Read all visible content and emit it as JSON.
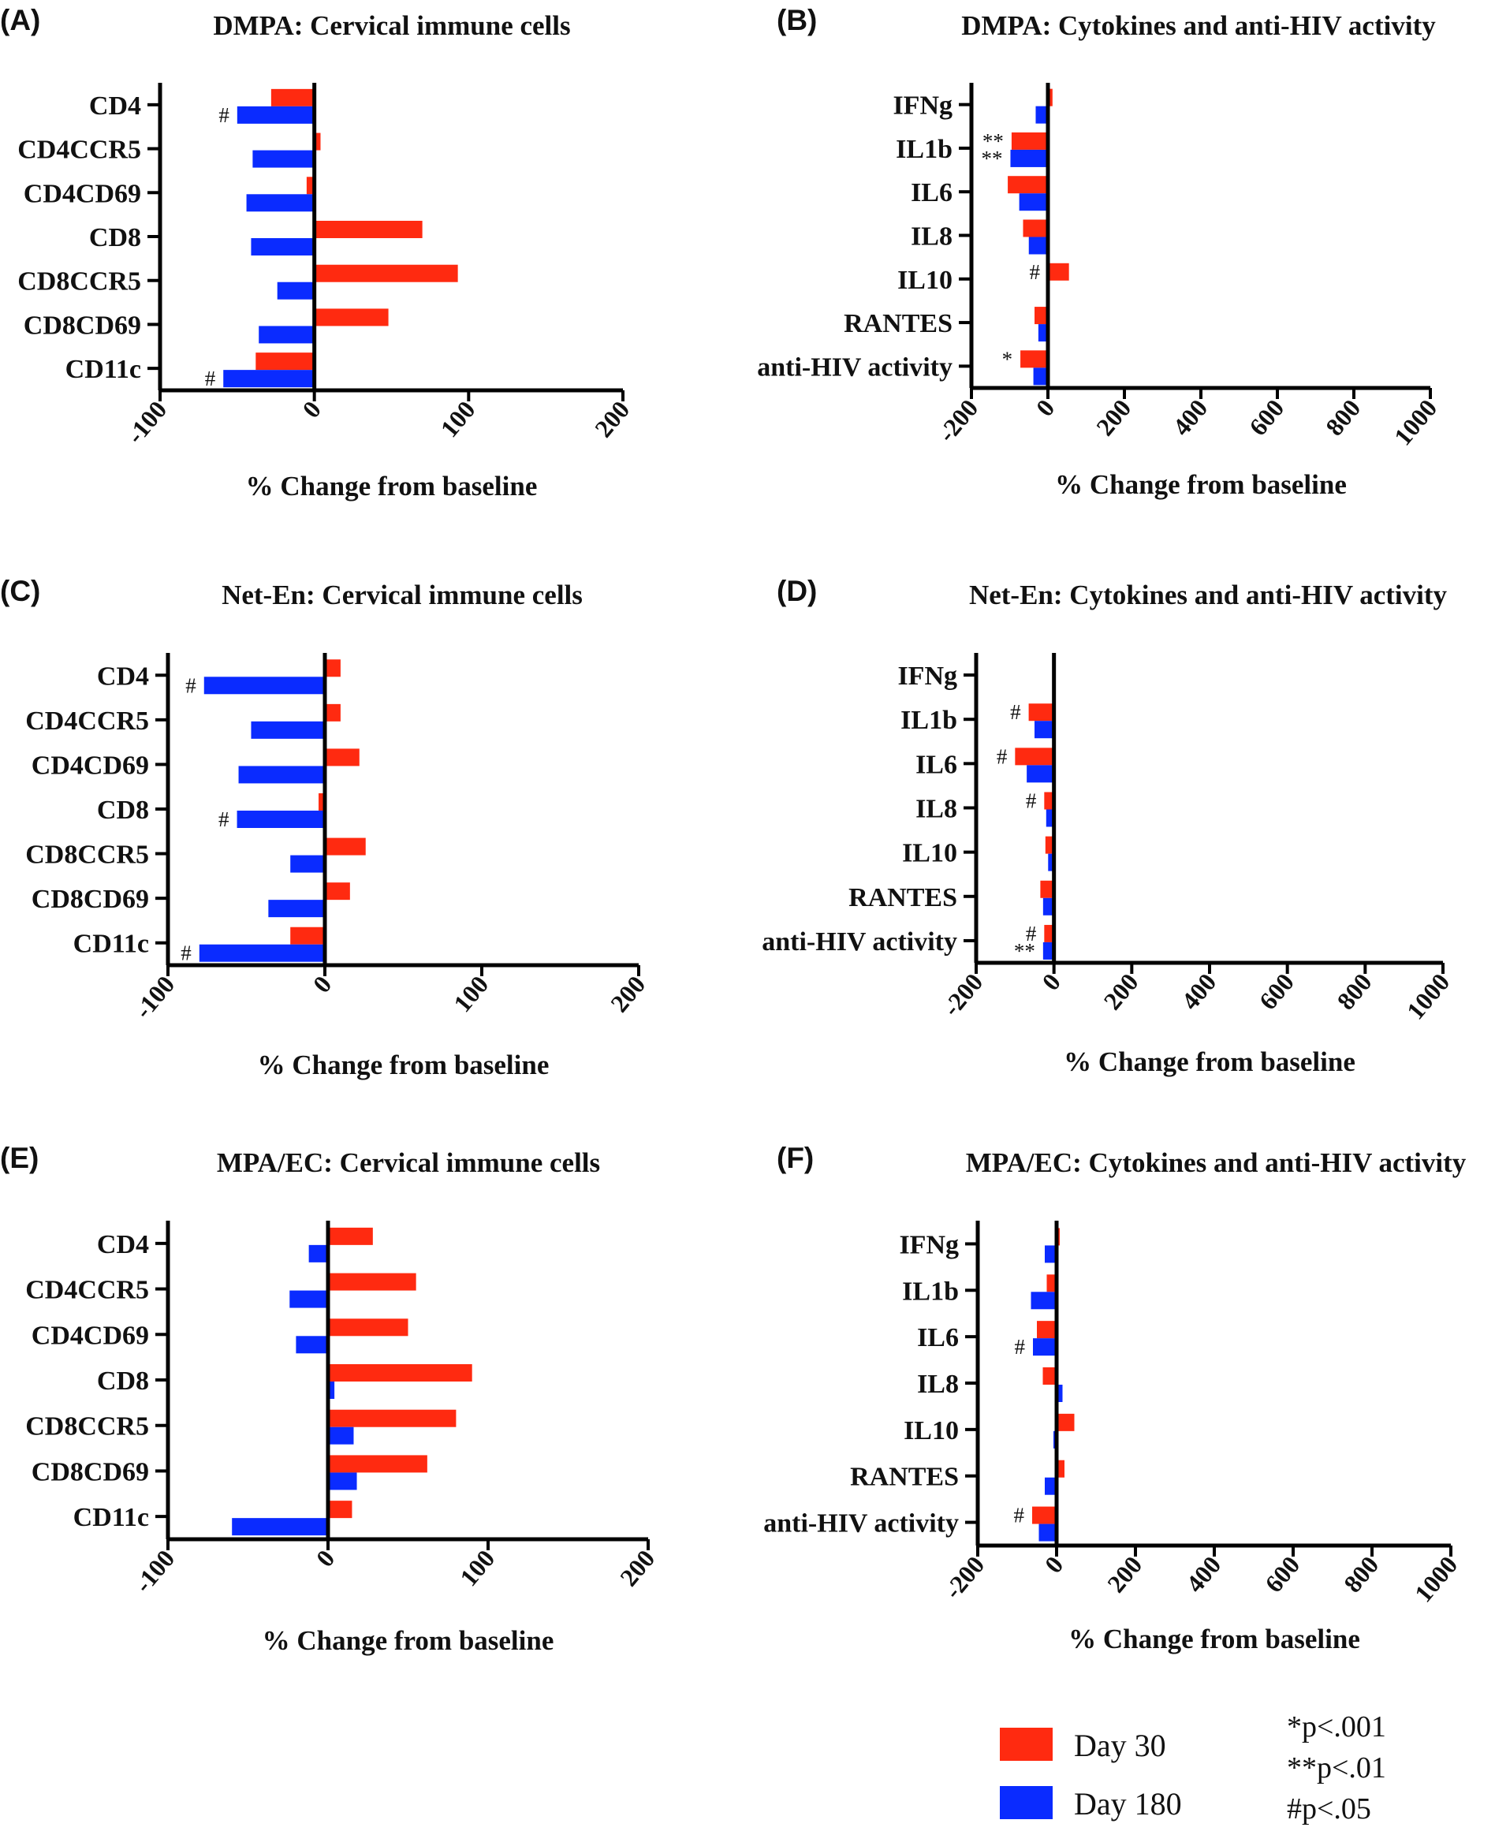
{
  "colors": {
    "day30": "#ff2a10",
    "day180": "#0a2bff",
    "axis": "#000000"
  },
  "legend": {
    "entries": [
      {
        "label": "Day 30",
        "color": "#ff2a10"
      },
      {
        "label": "Day 180",
        "color": "#0a2bff"
      }
    ],
    "notes": [
      "*p<.001",
      "**p<.01",
      "#p<.05"
    ]
  },
  "chart_data": [
    {
      "panel": "(A)",
      "type": "bar",
      "orientation": "horizontal",
      "title": "DMPA: Cervical immune cells",
      "xlabel": "% Change from baseline",
      "categories": [
        "CD4",
        "CD4CCR5",
        "CD4CD69",
        "CD8",
        "CD8CCR5",
        "CD8CD69",
        "CD11c"
      ],
      "xlim": [
        -100,
        200
      ],
      "xticks": [
        -100,
        0,
        100,
        200
      ],
      "series": [
        {
          "name": "Day 30",
          "values": [
            -28,
            4,
            -5,
            70,
            93,
            48,
            -38
          ]
        },
        {
          "name": "Day 180",
          "values": [
            -50,
            -40,
            -44,
            -41,
            -24,
            -36,
            -59
          ]
        }
      ],
      "annotations": [
        {
          "category": "CD4",
          "series": "Day 180",
          "text": "#"
        },
        {
          "category": "CD11c",
          "series": "Day 180",
          "text": "#"
        }
      ]
    },
    {
      "panel": "(B)",
      "type": "bar",
      "orientation": "horizontal",
      "title": "DMPA: Cytokines and anti-HIV activity",
      "xlabel": "% Change from baseline",
      "categories": [
        "IFNg",
        "IL1b",
        "IL6",
        "IL8",
        "IL10",
        "RANTES",
        "anti-HIV activity"
      ],
      "xlim": [
        -200,
        1000
      ],
      "xticks": [
        -200,
        0,
        200,
        400,
        600,
        800,
        1000
      ],
      "series": [
        {
          "name": "Day 30",
          "values": [
            12,
            -95,
            -105,
            -65,
            55,
            -35,
            -72
          ]
        },
        {
          "name": "Day 180",
          "values": [
            -32,
            -98,
            -75,
            -50,
            -5,
            -25,
            -38
          ]
        }
      ],
      "annotations": [
        {
          "category": "IL1b",
          "series": "Day 30",
          "text": "**"
        },
        {
          "category": "IL1b",
          "series": "Day 180",
          "text": "**"
        },
        {
          "category": "IL10",
          "series": "Day 30",
          "text": "#"
        },
        {
          "category": "anti-HIV activity",
          "series": "Day 30",
          "text": "*"
        }
      ]
    },
    {
      "panel": "(C)",
      "type": "bar",
      "orientation": "horizontal",
      "title": "Net-En: Cervical immune cells",
      "xlabel": "% Change from baseline",
      "categories": [
        "CD4",
        "CD4CCR5",
        "CD4CD69",
        "CD8",
        "CD8CCR5",
        "CD8CD69",
        "CD11c"
      ],
      "xlim": [
        -100,
        200
      ],
      "xticks": [
        -100,
        0,
        100,
        200
      ],
      "series": [
        {
          "name": "Day 30",
          "values": [
            10,
            10,
            22,
            -4,
            26,
            16,
            -22
          ]
        },
        {
          "name": "Day 180",
          "values": [
            -77,
            -47,
            -55,
            -56,
            -22,
            -36,
            -80
          ]
        }
      ],
      "annotations": [
        {
          "category": "CD4",
          "series": "Day 180",
          "text": "#"
        },
        {
          "category": "CD8",
          "series": "Day 180",
          "text": "#"
        },
        {
          "category": "CD11c",
          "series": "Day 180",
          "text": "#"
        }
      ]
    },
    {
      "panel": "(D)",
      "type": "bar",
      "orientation": "horizontal",
      "title": "Net-En: Cytokines and anti-HIV activity",
      "xlabel": "% Change from baseline",
      "categories": [
        "IFNg",
        "IL1b",
        "IL6",
        "IL8",
        "IL10",
        "RANTES",
        "anti-HIV activity"
      ],
      "xlim": [
        -200,
        1000
      ],
      "xticks": [
        -200,
        0,
        200,
        400,
        600,
        800,
        1000
      ],
      "series": [
        {
          "name": "Day 30",
          "values": [
            2,
            -65,
            -100,
            -25,
            -22,
            -35,
            -25
          ]
        },
        {
          "name": "Day 180",
          "values": [
            0,
            -50,
            -70,
            -20,
            -15,
            -28,
            -28
          ]
        }
      ],
      "annotations": [
        {
          "category": "IL1b",
          "series": "Day 30",
          "text": "#"
        },
        {
          "category": "IL6",
          "series": "Day 30",
          "text": "#"
        },
        {
          "category": "IL8",
          "series": "Day 30",
          "text": "#"
        },
        {
          "category": "anti-HIV activity",
          "series": "Day 30",
          "text": "#"
        },
        {
          "category": "anti-HIV activity",
          "series": "Day 180",
          "text": "**"
        }
      ]
    },
    {
      "panel": "(E)",
      "type": "bar",
      "orientation": "horizontal",
      "title": "MPA/EC: Cervical immune cells",
      "xlabel": "% Change from baseline",
      "categories": [
        "CD4",
        "CD4CCR5",
        "CD4CD69",
        "CD8",
        "CD8CCR5",
        "CD8CD69",
        "CD11c"
      ],
      "xlim": [
        -100,
        200
      ],
      "xticks": [
        -100,
        0,
        100,
        200
      ],
      "series": [
        {
          "name": "Day 30",
          "values": [
            28,
            55,
            50,
            90,
            80,
            62,
            15
          ]
        },
        {
          "name": "Day 180",
          "values": [
            -12,
            -24,
            -20,
            4,
            16,
            18,
            -60
          ]
        }
      ],
      "annotations": []
    },
    {
      "panel": "(F)",
      "type": "bar",
      "orientation": "horizontal",
      "title": "MPA/EC: Cytokines and anti-HIV activity",
      "xlabel": "% Change from baseline",
      "categories": [
        "IFNg",
        "IL1b",
        "IL6",
        "IL8",
        "IL10",
        "RANTES",
        "anti-HIV activity"
      ],
      "xlim": [
        -200,
        1000
      ],
      "xticks": [
        -200,
        0,
        200,
        400,
        600,
        800,
        1000
      ],
      "series": [
        {
          "name": "Day 30",
          "values": [
            8,
            -25,
            -50,
            -35,
            45,
            20,
            -62
          ]
        },
        {
          "name": "Day 180",
          "values": [
            -30,
            -65,
            -60,
            15,
            -8,
            -30,
            -45
          ]
        }
      ],
      "annotations": [
        {
          "category": "IL6",
          "series": "Day 180",
          "text": "#"
        },
        {
          "category": "anti-HIV activity",
          "series": "Day 30",
          "text": "#"
        }
      ]
    }
  ]
}
